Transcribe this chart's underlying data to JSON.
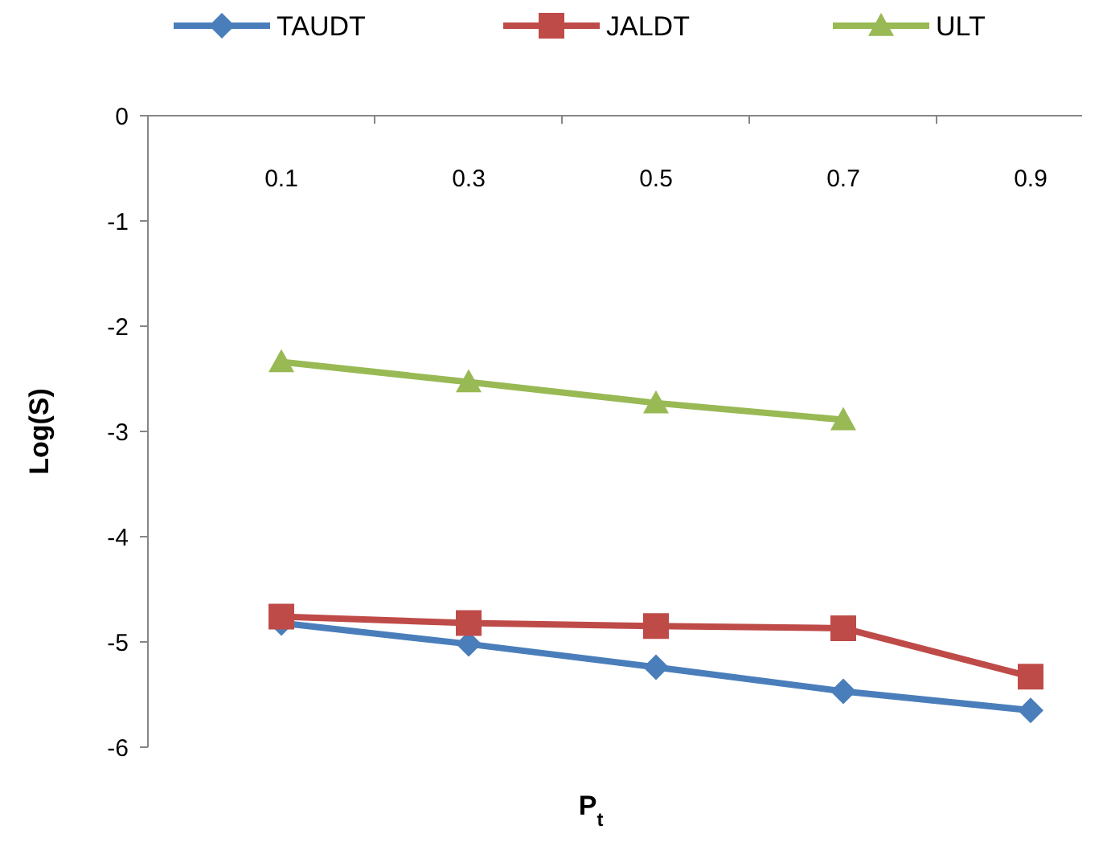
{
  "chart_data": {
    "type": "line",
    "xlabel": "P$_{t}$",
    "ylabel": "Log(S)",
    "categories": [
      "0.1",
      "0.3",
      "0.5",
      "0.7",
      "0.9"
    ],
    "ylim": [
      -6,
      0
    ],
    "yticks": [
      -6,
      -5,
      -4,
      -3,
      -2,
      -1,
      0
    ],
    "grid": false,
    "legend": "top",
    "series": [
      {
        "name": "TAUDT",
        "color": "#4a7ebb",
        "marker": "diamond",
        "values": [
          -4.82,
          -5.02,
          -5.24,
          -5.47,
          -5.65
        ]
      },
      {
        "name": "JALDT",
        "color": "#be4b48",
        "marker": "square",
        "values": [
          -4.76,
          -4.82,
          -4.85,
          -4.87,
          -5.33
        ]
      },
      {
        "name": "ULT",
        "color": "#98b954",
        "marker": "triangle",
        "values": [
          -2.34,
          -2.53,
          -2.73,
          -2.89,
          null
        ]
      }
    ]
  }
}
